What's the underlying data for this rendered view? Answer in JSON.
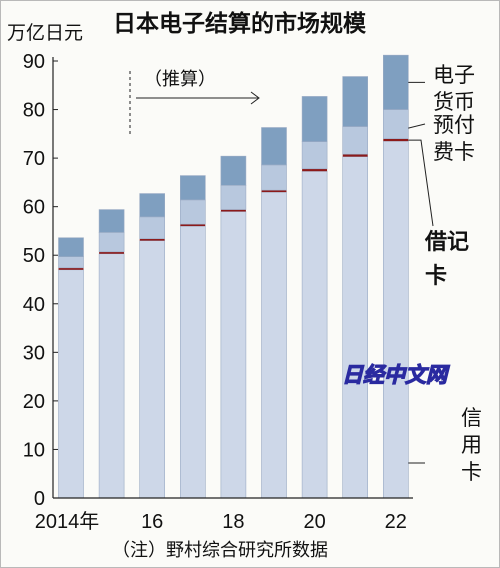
{
  "chart_data": {
    "type": "bar",
    "stacked": true,
    "title": "日本电子结算的市场规模",
    "unit_label": "万亿日元",
    "ylim": [
      0,
      90
    ],
    "yticks": [
      0,
      10,
      20,
      30,
      40,
      50,
      60,
      70,
      80,
      90
    ],
    "categories": [
      "2014",
      "2015",
      "2016",
      "2017",
      "2018",
      "2019",
      "2020",
      "2021",
      "2022"
    ],
    "x_tick_labels": [
      "2014年",
      "16",
      "18",
      "20",
      "22"
    ],
    "x_tick_indices": [
      0,
      2,
      4,
      6,
      8
    ],
    "estimate_label": "（推算）",
    "series": [
      {
        "name": "信用卡",
        "values": [
          47,
          50.3,
          53,
          56,
          59,
          63,
          67.3,
          70.3,
          73.5
        ],
        "color": "#cdd7e8"
      },
      {
        "name": "借记卡",
        "values": [
          0.4,
          0.4,
          0.4,
          0.4,
          0.4,
          0.4,
          0.5,
          0.5,
          0.5
        ],
        "color": "#8c1a1a"
      },
      {
        "name": "预付费卡",
        "values": [
          2.3,
          4,
          4.5,
          5,
          5,
          5.2,
          5.6,
          5.7,
          6
        ],
        "color": "#b8c8de"
      },
      {
        "name": "电子货币",
        "values": [
          3.9,
          4.7,
          4.8,
          5,
          6,
          7.7,
          9.3,
          10.3,
          11.2
        ],
        "color": "#7f9fc0"
      }
    ],
    "source_note": "（注）野村综合研究所数据",
    "watermark": "日经中文网"
  },
  "legend": {
    "emoney": "电子\n货币",
    "prepaid": "预付\n费卡",
    "debit": "借记\n卡",
    "credit": "信\n用\n卡"
  }
}
